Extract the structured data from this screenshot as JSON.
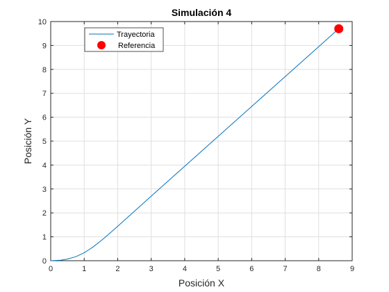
{
  "chart_data": {
    "type": "line",
    "title": "Simulación 4",
    "xlabel": "Posición X",
    "ylabel": "Posición Y",
    "xlim": [
      0,
      9
    ],
    "ylim": [
      0,
      10
    ],
    "x_ticks": [
      "0",
      "1",
      "2",
      "3",
      "4",
      "5",
      "6",
      "7",
      "8",
      "9"
    ],
    "y_ticks": [
      "0",
      "1",
      "2",
      "3",
      "4",
      "5",
      "6",
      "7",
      "8",
      "9",
      "10"
    ],
    "grid": true,
    "legend_position": "top-left",
    "series": [
      {
        "name": "Trayectoria",
        "kind": "line",
        "color": "#0072bd",
        "x": [
          0,
          0.3,
          0.5,
          0.75,
          1.0,
          1.25,
          1.5,
          1.75,
          2.0,
          3.0,
          4.0,
          5.0,
          6.0,
          7.0,
          8.0,
          8.6
        ],
        "y": [
          0,
          0.02,
          0.07,
          0.17,
          0.33,
          0.56,
          0.83,
          1.13,
          1.44,
          2.7,
          3.95,
          5.2,
          6.45,
          7.7,
          8.95,
          9.7
        ]
      },
      {
        "name": "Referencia",
        "kind": "marker",
        "color": "#ff0000",
        "x": [
          8.6
        ],
        "y": [
          9.7
        ]
      }
    ]
  }
}
